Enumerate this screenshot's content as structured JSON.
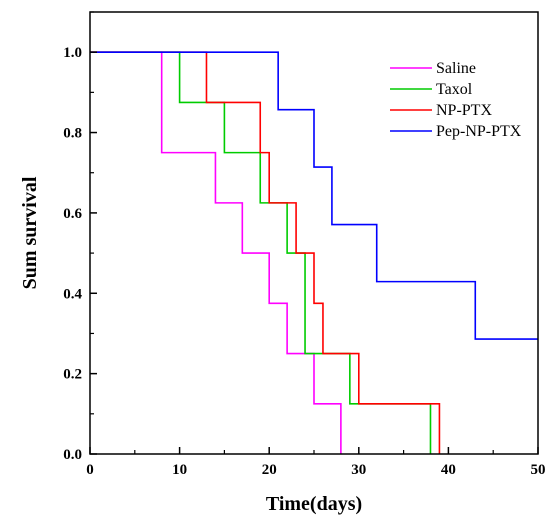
{
  "chart_data": {
    "type": "line",
    "step": true,
    "title": "",
    "xlabel": "Time(days)",
    "ylabel": "Sum survival",
    "xlim": [
      0,
      50
    ],
    "ylim": [
      0,
      1.1
    ],
    "xticks": [
      "0",
      "10",
      "20",
      "30",
      "40",
      "50"
    ],
    "yticks": [
      "0.0",
      "0.2",
      "0.4",
      "0.6",
      "0.8",
      "1.0"
    ],
    "grid": false,
    "legend_position": "top-right",
    "series": [
      {
        "name": "Saline",
        "color": "#ff00ff",
        "x": [
          0,
          8,
          14,
          17,
          20,
          22,
          25,
          28
        ],
        "y": [
          1.0,
          0.75,
          0.625,
          0.5,
          0.375,
          0.25,
          0.125,
          0.0
        ]
      },
      {
        "name": "Taxol",
        "color": "#00cc00",
        "x": [
          0,
          10,
          15,
          19,
          22,
          24,
          29,
          38
        ],
        "y": [
          1.0,
          0.875,
          0.75,
          0.625,
          0.5,
          0.25,
          0.125,
          0.0
        ]
      },
      {
        "name": "NP-PTX",
        "color": "#ff0000",
        "x": [
          0,
          13,
          19,
          20,
          23,
          25,
          26,
          30,
          39
        ],
        "y": [
          1.0,
          0.875,
          0.75,
          0.625,
          0.5,
          0.375,
          0.25,
          0.125,
          0.0
        ]
      },
      {
        "name": "Pep-NP-PTX",
        "color": "#0000ff",
        "x": [
          0,
          21,
          25,
          27,
          32,
          43,
          50
        ],
        "y": [
          1.0,
          0.857,
          0.714,
          0.571,
          0.429,
          0.286,
          0.286
        ]
      }
    ]
  }
}
